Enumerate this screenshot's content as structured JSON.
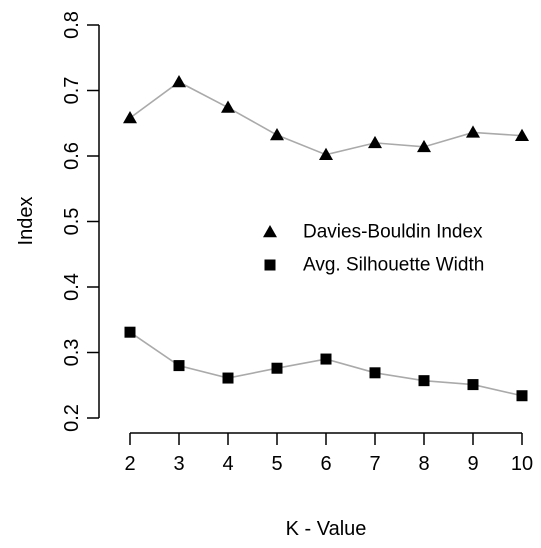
{
  "chart_data": {
    "type": "line",
    "title": "",
    "xlabel": "K - Value",
    "ylabel": "Index",
    "x": [
      2,
      3,
      4,
      5,
      6,
      7,
      8,
      9,
      10
    ],
    "x_ticks": [
      "2",
      "3",
      "4",
      "5",
      "6",
      "7",
      "8",
      "9",
      "10"
    ],
    "y_ticks": [
      "0.2",
      "0.3",
      "0.4",
      "0.5",
      "0.6",
      "0.7",
      "0.8"
    ],
    "xlim": [
      2,
      10
    ],
    "ylim": [
      0.2,
      0.8
    ],
    "grid": false,
    "legend_position": "right",
    "line_color": "#aaaaaa",
    "marker_color": "#000000",
    "series": [
      {
        "name": "Davies-Bouldin Index",
        "marker": "triangle",
        "values": [
          0.658,
          0.713,
          0.674,
          0.632,
          0.602,
          0.62,
          0.614,
          0.636,
          0.631
        ]
      },
      {
        "name": "Avg. Silhouette Width",
        "marker": "square",
        "values": [
          0.331,
          0.28,
          0.261,
          0.276,
          0.29,
          0.269,
          0.257,
          0.251,
          0.234
        ]
      }
    ]
  }
}
